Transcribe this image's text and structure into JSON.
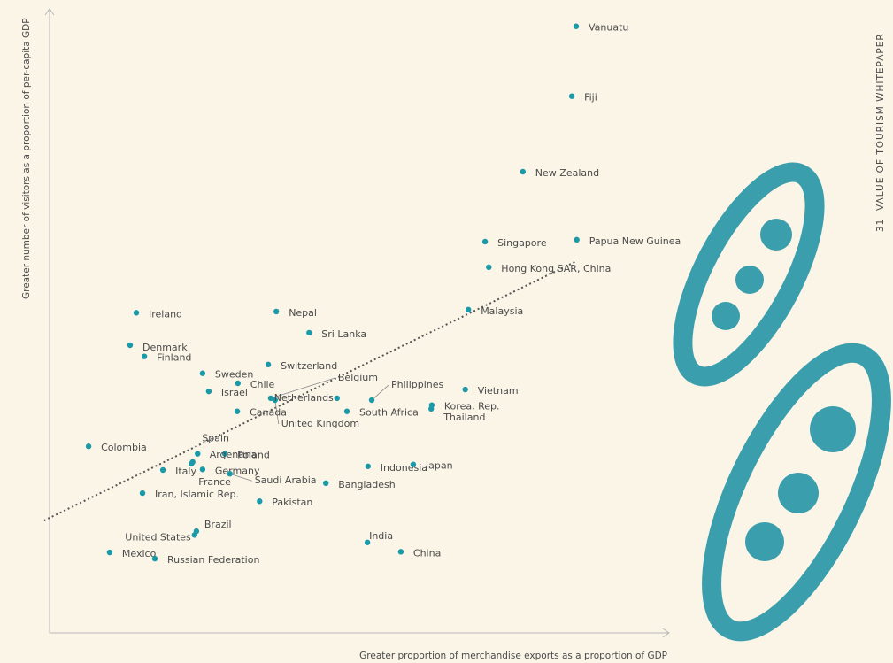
{
  "header": {
    "page_number": "31",
    "title": "VALUE OF TOURISM WHITEPAPER"
  },
  "chart_data": {
    "type": "scatter",
    "x_label": "Greater proportion of merchandise exports as a proportion of GDP",
    "y_label": "Greater number of visitors as a proportion of per-capita GDP",
    "xlim": [
      0,
      100
    ],
    "ylim": [
      0,
      100
    ],
    "color": "#1a9aa8",
    "point_labels": [
      "Vanuatu",
      "Fiji",
      "New Zealand",
      "Singapore",
      "Papua New Guinea",
      "Hong Kong SAR, China",
      "Malaysia",
      "Ireland",
      "Nepal",
      "Sri Lanka",
      "Denmark",
      "Finland",
      "Sweden",
      "Switzerland",
      "Chile",
      "Israel",
      "Belgium",
      "United Kingdom",
      "Netherlands",
      "Canada",
      "Philippines",
      "South Africa",
      "Vietnam",
      "Korea, Rep.",
      "Thailand",
      "Colombia",
      "Spain",
      "Poland",
      "Argentina",
      "France",
      "Italy",
      "Germany",
      "Saudi Arabia",
      "Bangladesh",
      "Indonesia",
      "Japan",
      "Iran, Islamic Rep.",
      "Pakistan",
      "Brazil",
      "United States",
      "India",
      "China",
      "Mexico",
      "Russian Federation"
    ],
    "x": [
      85.0,
      84.3,
      76.4,
      70.3,
      85.1,
      70.9,
      67.6,
      14.0,
      36.6,
      41.9,
      13.0,
      15.3,
      24.7,
      35.3,
      30.4,
      25.7,
      35.7,
      36.4,
      46.4,
      30.3,
      52.0,
      48.0,
      67.1,
      61.7,
      61.6,
      6.3,
      23.9,
      28.3,
      23.1,
      22.9,
      18.3,
      24.7,
      29.1,
      44.6,
      51.4,
      58.7,
      15.0,
      33.9,
      23.7,
      23.4,
      51.3,
      56.7,
      9.7,
      17.0
    ],
    "values": [
      97.2,
      86.0,
      73.9,
      62.7,
      63.0,
      58.6,
      51.8,
      51.3,
      51.5,
      48.1,
      46.1,
      44.3,
      41.6,
      43.0,
      40.0,
      38.7,
      37.6,
      37.3,
      37.6,
      35.5,
      37.3,
      35.5,
      39.0,
      36.5,
      35.9,
      29.9,
      28.7,
      28.7,
      27.4,
      27.1,
      26.1,
      26.2,
      25.5,
      24.0,
      26.7,
      27.0,
      22.4,
      21.1,
      16.3,
      15.7,
      14.5,
      13.0,
      12.9,
      11.9
    ],
    "trendline": {
      "x": [
        -0.9,
        85.1
      ],
      "y": [
        18.0,
        59.6
      ]
    }
  }
}
